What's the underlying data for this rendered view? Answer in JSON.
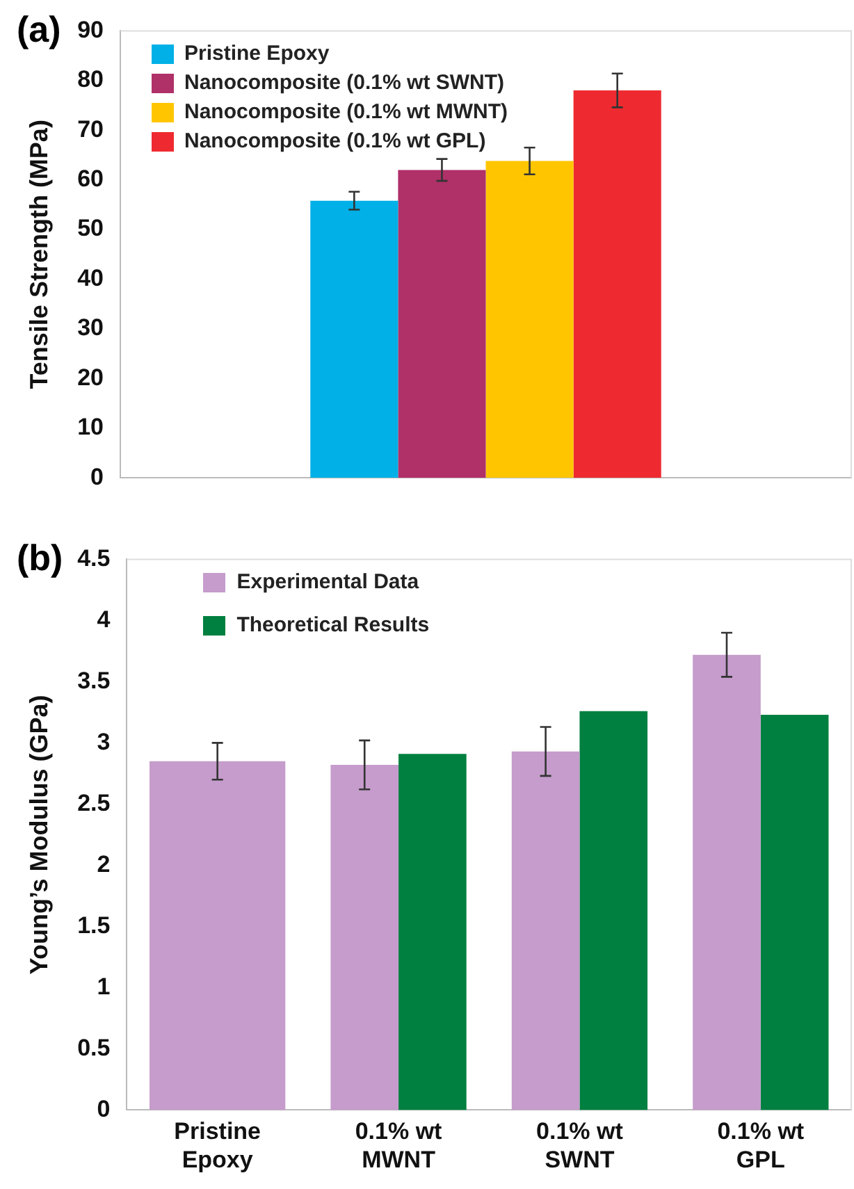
{
  "chart_data": [
    {
      "type": "bar",
      "title": "(a)",
      "ylabel": "Tensile Strength (MPa)",
      "categories": [
        null
      ],
      "ylim": [
        0,
        90
      ],
      "yticks": [
        0,
        10,
        20,
        30,
        40,
        50,
        60,
        70,
        80,
        90
      ],
      "grid": false,
      "legend": "top left",
      "series": [
        {
          "name": "Pristine Epoxy",
          "color": "#00b0e6",
          "values": [
            55.8
          ],
          "errors": [
            1.8
          ]
        },
        {
          "name": "Nanocomposite (0.1% wt SWNT)",
          "color": "#b03068",
          "values": [
            62
          ],
          "errors": [
            2.2
          ]
        },
        {
          "name": "Nanocomposite (0.1% wt MWNT)",
          "color": "#ffc600",
          "values": [
            63.8
          ],
          "errors": [
            2.7
          ]
        },
        {
          "name": "Nanocomposite (0.1% wt GPL)",
          "color": "#ee2a30",
          "values": [
            78
          ],
          "errors": [
            3.4
          ]
        }
      ]
    },
    {
      "type": "bar",
      "title": "(b)",
      "ylabel": "Young’s Modulus (GPa)",
      "categories": [
        "Pristine Epoxy",
        "0.1% wt MWNT",
        "0.1% wt SWNT",
        "0.1% wt GPL"
      ],
      "ylim": [
        0,
        4.5
      ],
      "yticks": [
        0,
        0.5,
        1,
        1.5,
        2,
        2.5,
        3,
        3.5,
        4,
        4.5
      ],
      "grid": false,
      "legend": "top left",
      "series": [
        {
          "name": "Experimental Data",
          "color": "#c59ccb",
          "values": [
            2.85,
            2.82,
            2.93,
            3.72
          ],
          "errors": [
            0.15,
            0.2,
            0.2,
            0.18
          ]
        },
        {
          "name": "Theoretical Results",
          "color": "#008040",
          "values": [
            null,
            2.91,
            3.26,
            3.23
          ]
        }
      ]
    }
  ]
}
